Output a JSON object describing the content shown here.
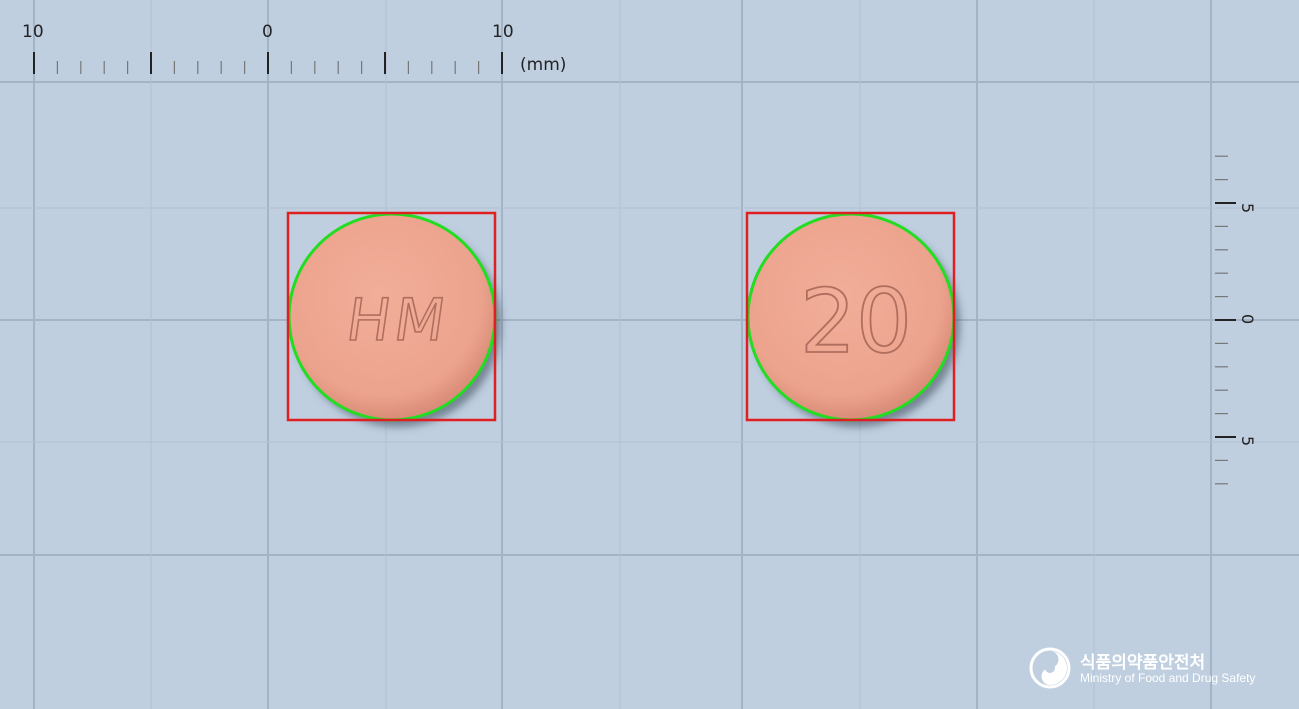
{
  "colors": {
    "background": "#bfcfe0",
    "grid_line": "#a3b4c7",
    "pill_fill": "#eca38d",
    "pill_text": "#b06e5e",
    "contour": "#22dd22",
    "bounding_box": "#e02020"
  },
  "ruler_top": {
    "labels": [
      "10",
      "0",
      "10"
    ],
    "unit": "(mm)"
  },
  "ruler_right": {
    "labels": [
      "5",
      "0",
      "5"
    ]
  },
  "pills": [
    {
      "imprint": "HM"
    },
    {
      "imprint": "20"
    }
  ],
  "logo": {
    "icon": "taegeuk-emblem-icon",
    "name_ko": "식품의약품안전처",
    "name_en": "Ministry of Food and Drug Safety"
  }
}
